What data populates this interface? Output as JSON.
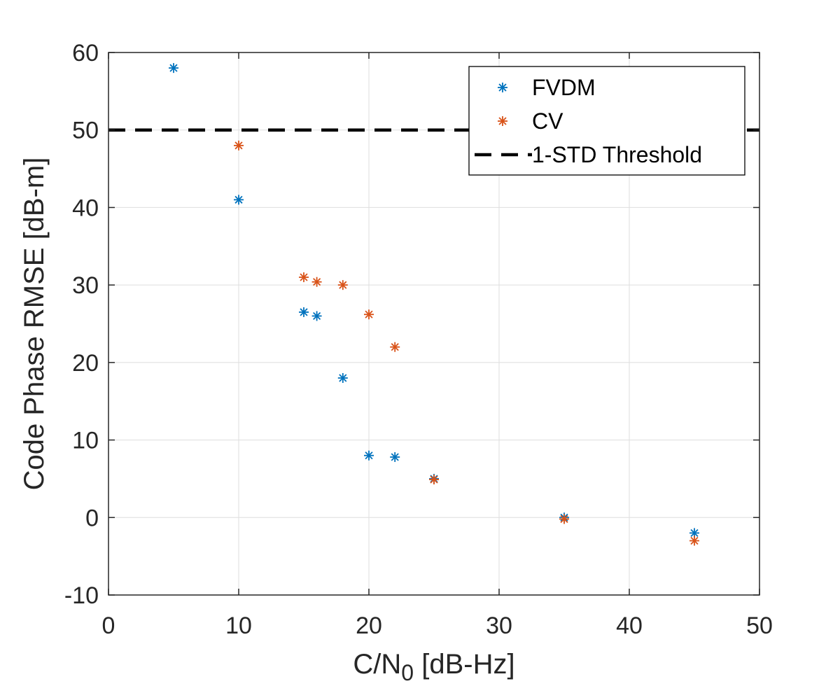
{
  "chart_data": {
    "type": "scatter",
    "title": "",
    "xlabel": "C/N",
    "xlabel_subscript": "0",
    "xlabel_suffix": " [dB-Hz]",
    "ylabel": "Code Phase RMSE [dB-m]",
    "xlim": [
      0,
      50
    ],
    "ylim": [
      -10,
      60
    ],
    "x_ticks": [
      0,
      10,
      20,
      30,
      40,
      50
    ],
    "x_tick_labels": [
      "0",
      "10",
      "20",
      "30",
      "40",
      "50"
    ],
    "y_ticks": [
      -10,
      0,
      10,
      20,
      30,
      40,
      50,
      60
    ],
    "y_tick_labels": [
      "-10",
      "0",
      "10",
      "20",
      "30",
      "40",
      "50",
      "60"
    ],
    "grid": true,
    "legend_position": "top-right",
    "marker": "asterisk",
    "series": [
      {
        "name": "FVDM",
        "color": "#0072BD",
        "x": [
          5,
          10,
          15,
          16,
          18,
          20,
          22,
          25,
          35,
          45
        ],
        "y": [
          58,
          41,
          26.5,
          26,
          18,
          8,
          7.8,
          5,
          0,
          -2
        ]
      },
      {
        "name": "CV",
        "color": "#D95319",
        "x": [
          10,
          15,
          16,
          18,
          20,
          22,
          25,
          35,
          45
        ],
        "y": [
          48,
          31,
          30.4,
          30,
          26.2,
          22,
          4.9,
          -0.2,
          -3
        ]
      }
    ],
    "reference_lines": [
      {
        "name": "1-STD Threshold",
        "y": 50,
        "color": "#000000",
        "style": "dashed"
      }
    ]
  }
}
